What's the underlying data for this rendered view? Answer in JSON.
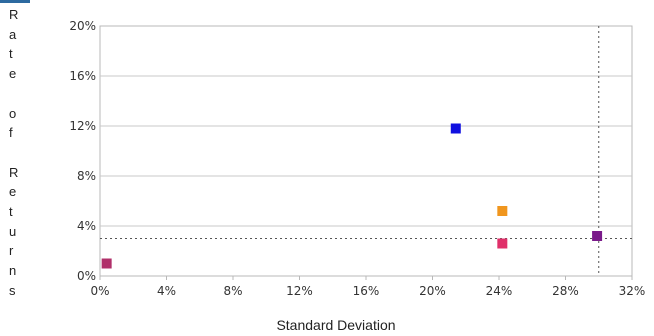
{
  "chart_data": {
    "type": "scatter",
    "xlabel": "Standard Deviation",
    "ylabel": "Rate of Returns",
    "xlim": [
      0,
      32
    ],
    "ylim": [
      0,
      20
    ],
    "x_ticks": [
      "0%",
      "4%",
      "8%",
      "12%",
      "16%",
      "20%",
      "24%",
      "28%",
      "32%"
    ],
    "y_ticks": [
      "0%",
      "4%",
      "8%",
      "12%",
      "16%",
      "20%"
    ],
    "grid": "horizontal",
    "points": [
      {
        "x": 0.4,
        "y": 1.0,
        "color": "#b0306a"
      },
      {
        "x": 21.4,
        "y": 11.8,
        "color": "#1010e0"
      },
      {
        "x": 24.2,
        "y": 5.2,
        "color": "#f0961e"
      },
      {
        "x": 24.2,
        "y": 2.6,
        "color": "#e0306a"
      },
      {
        "x": 29.9,
        "y": 3.2,
        "color": "#7a1a8a"
      }
    ],
    "reference_lines": {
      "x": 30.0,
      "y": 3.0
    }
  }
}
